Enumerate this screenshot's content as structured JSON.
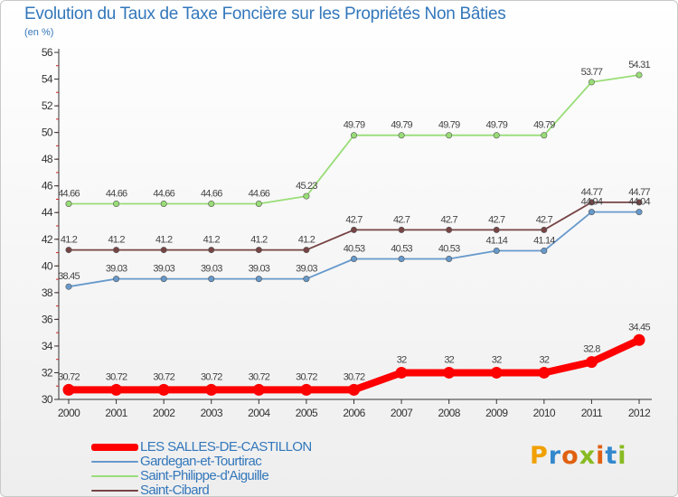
{
  "title": "Evolution du Taux de Taxe Foncière sur les Propriétés Non Bâties",
  "unit_label": "(en %)",
  "logo_text": "Proxiti",
  "chart_data": {
    "type": "line",
    "title": "Evolution du Taux de Taxe Foncière sur les Propriétés Non Bâties",
    "xlabel": "",
    "ylabel": "(en %)",
    "x": [
      "2000",
      "2001",
      "2002",
      "2003",
      "2004",
      "2005",
      "2006",
      "2007",
      "2008",
      "2009",
      "2010",
      "2011",
      "2012"
    ],
    "ylim": [
      30,
      56
    ],
    "yticks": [
      30,
      32,
      34,
      36,
      38,
      40,
      42,
      44,
      46,
      48,
      50,
      52,
      54,
      56
    ],
    "grid": false,
    "legend_position": "bottom-left",
    "series": [
      {
        "name": "LES SALLES-DE-CASTILLON",
        "color": "#ff0000",
        "bold": true,
        "values": [
          30.72,
          30.72,
          30.72,
          30.72,
          30.72,
          30.72,
          30.72,
          32,
          32,
          32,
          32,
          32.8,
          34.45
        ],
        "labels": [
          "30.72",
          "30.72",
          "30.72",
          "30.72",
          "30.72",
          "30.72",
          "30.72",
          "32",
          "32",
          "32",
          "32",
          "32.8",
          "34.45"
        ]
      },
      {
        "name": "Gardegan-et-Tourtirac",
        "color": "#6699cc",
        "bold": false,
        "values": [
          38.45,
          39.03,
          39.03,
          39.03,
          39.03,
          39.03,
          40.53,
          40.53,
          40.53,
          41.14,
          41.14,
          44.04,
          44.04
        ],
        "labels": [
          "38.45",
          "39.03",
          "39.03",
          "39.03",
          "39.03",
          "39.03",
          "40.53",
          "40.53",
          "40.53",
          "41.14",
          "41.14",
          "44.04",
          "44.04"
        ]
      },
      {
        "name": "Saint-Philippe-d'Aiguille",
        "color": "#99dd77",
        "bold": false,
        "values": [
          44.66,
          44.66,
          44.66,
          44.66,
          44.66,
          45.23,
          49.79,
          49.79,
          49.79,
          49.79,
          49.79,
          53.77,
          54.31
        ],
        "labels": [
          "44.66",
          "44.66",
          "44.66",
          "44.66",
          "44.66",
          "45.23",
          "49.79",
          "49.79",
          "49.79",
          "49.79",
          "49.79",
          "53.77",
          "54.31"
        ]
      },
      {
        "name": "Saint-Cibard",
        "color": "#774444",
        "bold": false,
        "values": [
          41.2,
          41.2,
          41.2,
          41.2,
          41.2,
          41.2,
          42.7,
          42.7,
          42.7,
          42.7,
          42.7,
          44.77,
          44.77
        ],
        "labels": [
          "41.2",
          "41.2",
          "41.2",
          "41.2",
          "41.2",
          "41.2",
          "42.7",
          "42.7",
          "42.7",
          "42.7",
          "42.7",
          "44.77",
          "44.77"
        ]
      }
    ]
  }
}
